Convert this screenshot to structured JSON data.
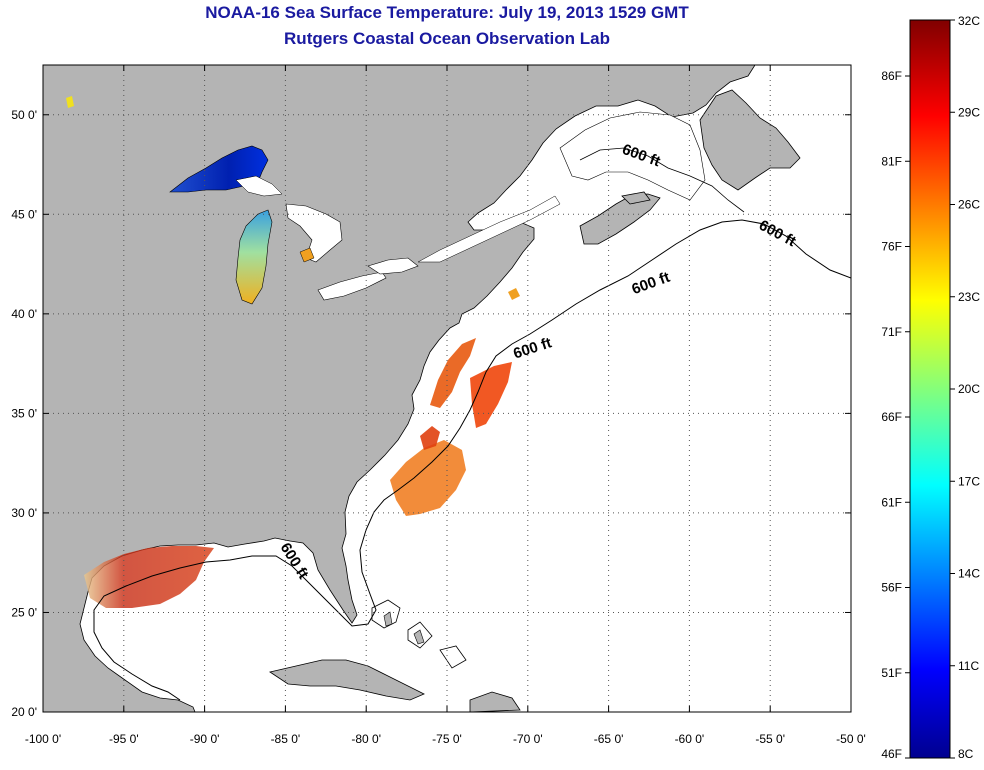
{
  "header": {
    "title": "NOAA-16 Sea Surface Temperature:  July 19, 2013 1529 GMT",
    "subtitle": "Rutgers Coastal Ocean Observation Lab"
  },
  "map": {
    "lon_range": [
      -100,
      -50
    ],
    "lat_range": [
      20,
      52.5
    ],
    "lon_ticks": [
      {
        "value": -100,
        "label": "-100 0'"
      },
      {
        "value": -95,
        "label": "-95 0'"
      },
      {
        "value": -90,
        "label": "-90 0'"
      },
      {
        "value": -85,
        "label": "-85 0'"
      },
      {
        "value": -80,
        "label": "-80 0'"
      },
      {
        "value": -75,
        "label": "-75 0'"
      },
      {
        "value": -70,
        "label": "-70 0'"
      },
      {
        "value": -65,
        "label": "-65 0'"
      },
      {
        "value": -60,
        "label": "-60 0'"
      },
      {
        "value": -55,
        "label": "-55 0'"
      },
      {
        "value": -50,
        "label": "-50 0'"
      }
    ],
    "lat_ticks": [
      {
        "value": 20,
        "label": "20 0'"
      },
      {
        "value": 25,
        "label": "25 0'"
      },
      {
        "value": 30,
        "label": "30 0'"
      },
      {
        "value": 35,
        "label": "35 0'"
      },
      {
        "value": 40,
        "label": "40 0'"
      },
      {
        "value": 45,
        "label": "45 0'"
      },
      {
        "value": 50,
        "label": "50 0'"
      }
    ],
    "grid": "dotted",
    "land_color": "#b4b4b4",
    "ocean_color": "#ffffff",
    "contour_label": "600 ft"
  },
  "colorbar": {
    "colors": [
      "#00008f",
      "#0000ff",
      "#00ffff",
      "#ffff00",
      "#ff0000",
      "#800000"
    ],
    "celsius_labels": [
      "32C",
      "29C",
      "26C",
      "23C",
      "20C",
      "17C",
      "14C",
      "11C",
      "8C"
    ],
    "fahrenheit_labels": [
      "86F",
      "81F",
      "76F",
      "71F",
      "66F",
      "61F",
      "56F",
      "51F",
      "46F"
    ]
  }
}
